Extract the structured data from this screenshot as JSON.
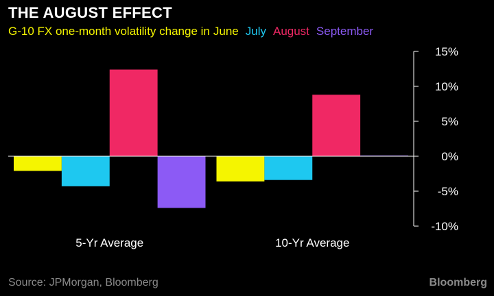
{
  "title": "THE AUGUST EFFECT",
  "legend": {
    "prefix": "G-10 FX one-month volatility change in",
    "items": [
      {
        "label": "June",
        "color": "#f5f500"
      },
      {
        "label": "July",
        "color": "#1ec8f0"
      },
      {
        "label": "August",
        "color": "#f02864"
      },
      {
        "label": "September",
        "color": "#8c5af5"
      }
    ]
  },
  "source": "Source: JPMorgan, Bloomberg",
  "brand": "Bloomberg",
  "chart_data": {
    "type": "bar",
    "categories": [
      "5-Yr Average",
      "10-Yr Average"
    ],
    "series": [
      {
        "name": "June",
        "values": [
          -2.1,
          -3.6
        ]
      },
      {
        "name": "July",
        "values": [
          -4.3,
          -3.4
        ]
      },
      {
        "name": "August",
        "values": [
          12.4,
          8.8
        ]
      },
      {
        "name": "September",
        "values": [
          -7.4,
          0.1
        ]
      }
    ],
    "ylim": [
      -10,
      15
    ],
    "yticks": [
      15,
      10,
      5,
      0,
      -5,
      -10
    ],
    "ytick_labels": [
      "15%",
      "10%",
      "5%",
      "0%",
      "-5%",
      "-10%"
    ],
    "colors": [
      "#f5f500",
      "#1ec8f0",
      "#f02864",
      "#8c5af5"
    ],
    "axis_side": "right",
    "grid": false
  }
}
